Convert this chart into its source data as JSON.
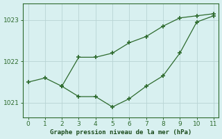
{
  "line1_x": [
    0,
    1,
    2,
    3,
    4,
    5,
    6,
    7,
    8,
    9,
    10,
    11
  ],
  "line1_y": [
    1021.5,
    1021.6,
    1021.4,
    1021.15,
    1021.15,
    1020.9,
    1021.1,
    1021.4,
    1021.65,
    1022.2,
    1022.95,
    1023.1
  ],
  "line2_x": [
    2,
    3,
    4,
    5,
    6,
    7,
    8,
    9,
    10,
    11
  ],
  "line2_y": [
    1021.4,
    1022.1,
    1022.1,
    1022.2,
    1022.45,
    1022.6,
    1022.85,
    1023.05,
    1023.1,
    1023.15
  ],
  "line_color": "#2d6a2d",
  "bg_color": "#d8f0f0",
  "grid_color": "#b8d4d4",
  "xlabel": "Graphe pression niveau de la mer (hPa)",
  "xlabel_color": "#1a4a1a",
  "tick_color": "#2d6a2d",
  "ylim_min": 1020.65,
  "ylim_max": 1023.4,
  "xlim_min": -0.3,
  "xlim_max": 11.3,
  "yticks": [
    1021,
    1022,
    1023
  ],
  "xticks": [
    0,
    1,
    2,
    3,
    4,
    5,
    6,
    7,
    8,
    9,
    10,
    11
  ]
}
